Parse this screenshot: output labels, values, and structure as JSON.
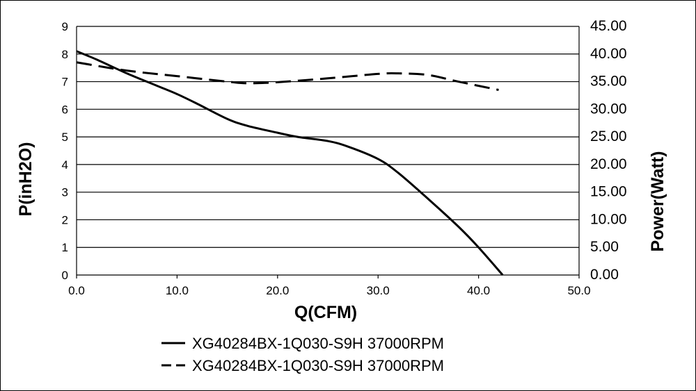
{
  "chart_data": {
    "type": "line",
    "title": "",
    "xlabel": "Q(CFM)",
    "ylabel": "P(inH2O)",
    "y2label": "Power(Watt)",
    "xlim": [
      0,
      50
    ],
    "ylim": [
      0,
      9
    ],
    "y2lim": [
      0,
      45
    ],
    "grid": "horizontal",
    "legend_position": "bottom",
    "x_ticks": [
      "0.0",
      "10.0",
      "20.0",
      "30.0",
      "40.0",
      "50.0"
    ],
    "y_ticks": [
      "0",
      "1",
      "2",
      "3",
      "4",
      "5",
      "6",
      "7",
      "8",
      "9"
    ],
    "y2_ticks": [
      "0.00",
      "5.00",
      "10.00",
      "15.00",
      "20.00",
      "25.00",
      "30.00",
      "35.00",
      "40.00",
      "45.00"
    ],
    "series": [
      {
        "name": "XG40284BX-1Q030-S9H 37000RPM",
        "axis": "left",
        "style": "solid",
        "x": [
          0,
          2,
          5,
          8,
          10,
          12,
          15,
          17,
          20,
          22,
          25,
          27,
          30,
          32,
          35,
          38,
          40,
          42.4
        ],
        "y": [
          8.1,
          7.8,
          7.3,
          6.85,
          6.55,
          6.2,
          5.65,
          5.4,
          5.15,
          5.0,
          4.85,
          4.65,
          4.2,
          3.7,
          2.75,
          1.75,
          1.0,
          0.0
        ]
      },
      {
        "name": "XG40284BX-1Q030-S9H 37000RPM",
        "axis": "right",
        "style": "dashed",
        "x": [
          0,
          5,
          10,
          15,
          17,
          20,
          25,
          30,
          32,
          35,
          38,
          42
        ],
        "y": [
          38.5,
          37.0,
          36.0,
          35.0,
          34.7,
          34.9,
          35.6,
          36.4,
          36.5,
          36.2,
          35.0,
          33.5
        ]
      }
    ]
  }
}
